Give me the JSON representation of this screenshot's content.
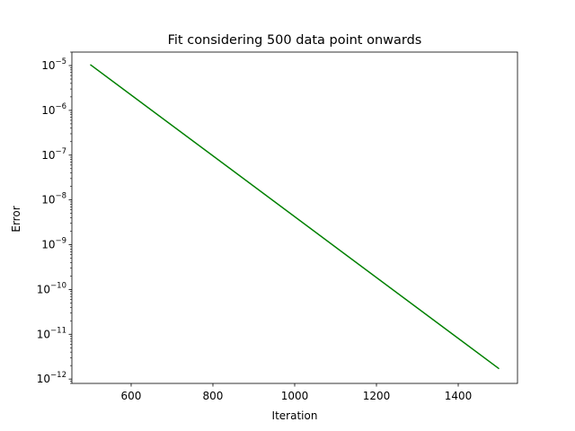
{
  "chart_data": {
    "type": "line",
    "title": "Fit considering 500 data point onwards",
    "xlabel": "Iteration",
    "ylabel": "Error",
    "yscale": "log",
    "xlim": [
      455,
      1545
    ],
    "ylim": [
      8e-13,
      2e-05
    ],
    "x_ticks": [
      600,
      800,
      1000,
      1200,
      1400
    ],
    "y_ticks": [
      {
        "value": 1e-12,
        "base": "10",
        "exp": "−12"
      },
      {
        "value": 1e-11,
        "base": "10",
        "exp": "−11"
      },
      {
        "value": 1e-10,
        "base": "10",
        "exp": "−10"
      },
      {
        "value": 1e-09,
        "base": "10",
        "exp": "−9"
      },
      {
        "value": 1e-08,
        "base": "10",
        "exp": "−8"
      },
      {
        "value": 1e-07,
        "base": "10",
        "exp": "−7"
      },
      {
        "value": 1e-06,
        "base": "10",
        "exp": "−6"
      },
      {
        "value": 1e-05,
        "base": "10",
        "exp": "−5"
      }
    ],
    "grid": false,
    "series": [
      {
        "color": "#008000",
        "x": [
          500,
          1500
        ],
        "y": [
          1.05e-05,
          1.7e-12
        ]
      }
    ]
  }
}
